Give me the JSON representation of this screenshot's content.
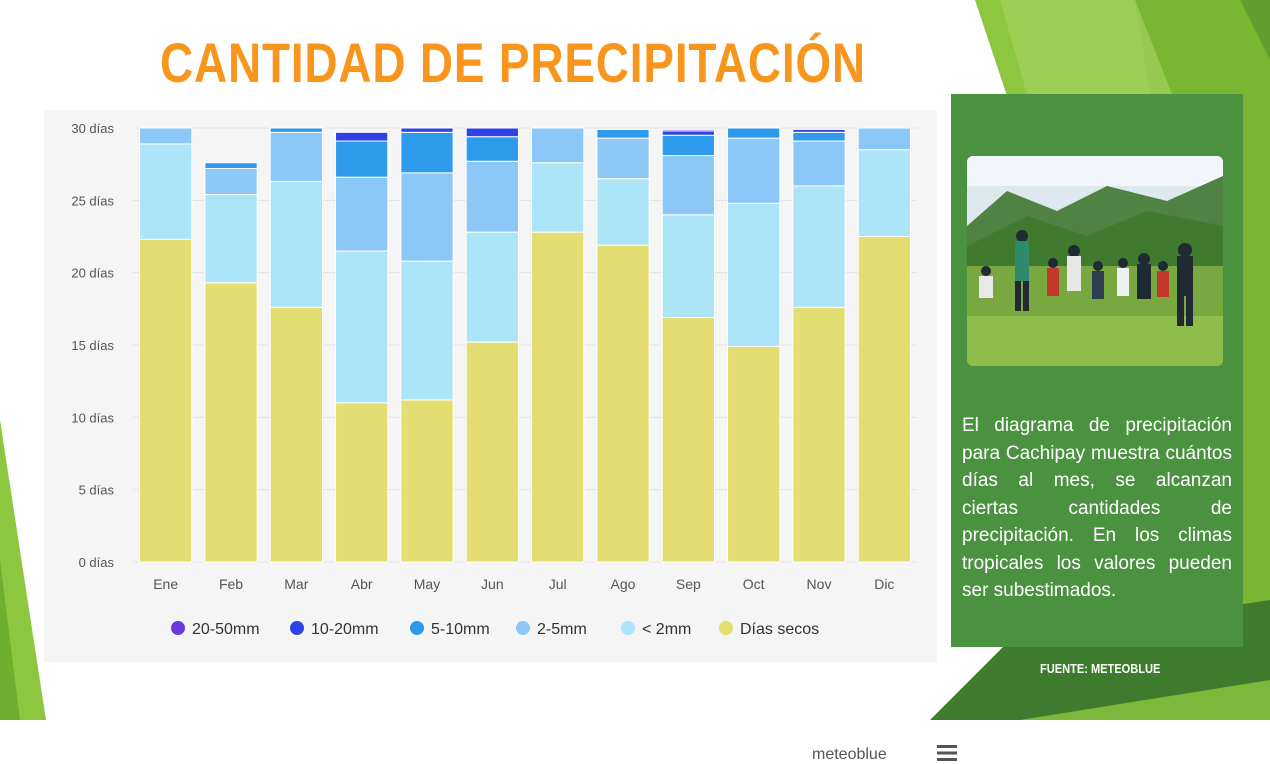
{
  "slide": {
    "title": "CANTIDAD DE PRECIPITACIÓN",
    "description": "El diagrama de precipitación para Cachipay muestra cuántos días al mes, se alcanzan ciertas cantidades de precipitación. En los climas tropicales los valores pueden ser subestimados.",
    "source": "FUENTE: METEOBLUE",
    "watermark": "meteoblue",
    "menu_icon": "hamburger-menu-icon",
    "photo_icon": "landscape-group-photo"
  },
  "colors": {
    "title": "#f7951d",
    "info_box": "#4b9240",
    "accent_green_light": "#8dc63f",
    "accent_green_dark": "#3e7c2d"
  },
  "chart_data": {
    "type": "bar",
    "stacked": true,
    "categories": [
      "Ene",
      "Feb",
      "Mar",
      "Abr",
      "May",
      "Jun",
      "Jul",
      "Ago",
      "Sep",
      "Oct",
      "Nov",
      "Dic"
    ],
    "ylim": [
      0,
      30
    ],
    "yticks": [
      0,
      5,
      10,
      15,
      20,
      25,
      30
    ],
    "ytick_labels": [
      "0 días",
      "5 días",
      "10 días",
      "15 días",
      "20 días",
      "25 días",
      "30 días"
    ],
    "grid": true,
    "legend_position": "bottom",
    "series": [
      {
        "name": "Días secos",
        "color": "#e3dd72",
        "values": [
          22.3,
          19.3,
          17.6,
          11.0,
          11.2,
          15.2,
          22.8,
          21.9,
          16.9,
          14.9,
          17.6,
          22.5
        ]
      },
      {
        "name": "< 2mm",
        "color": "#ade5f8",
        "values": [
          6.6,
          6.1,
          8.7,
          10.5,
          9.6,
          7.6,
          4.8,
          4.6,
          7.1,
          9.9,
          8.4,
          6.0
        ]
      },
      {
        "name": "2-5mm",
        "color": "#8bc8f7",
        "values": [
          1.1,
          1.8,
          3.4,
          5.1,
          6.1,
          4.9,
          2.4,
          2.8,
          4.1,
          4.5,
          3.1,
          1.5
        ]
      },
      {
        "name": "5-10mm",
        "color": "#2e9aeb",
        "values": [
          0,
          0.4,
          0.3,
          2.5,
          2.8,
          1.7,
          0,
          0.6,
          1.4,
          0.7,
          0.6,
          0
        ]
      },
      {
        "name": "10-20mm",
        "color": "#2f42e6",
        "values": [
          0,
          0,
          0,
          0.6,
          0.3,
          0.6,
          0,
          0,
          0.3,
          0,
          0.2,
          0
        ]
      },
      {
        "name": "20-50mm",
        "color": "#6a3ae0",
        "values": [
          0,
          0,
          0,
          0,
          0,
          0,
          0,
          0,
          0.1,
          0,
          0,
          0
        ]
      }
    ],
    "legend_order": [
      "20-50mm",
      "10-20mm",
      "5-10mm",
      "2-5mm",
      "< 2mm",
      "Días secos"
    ]
  }
}
